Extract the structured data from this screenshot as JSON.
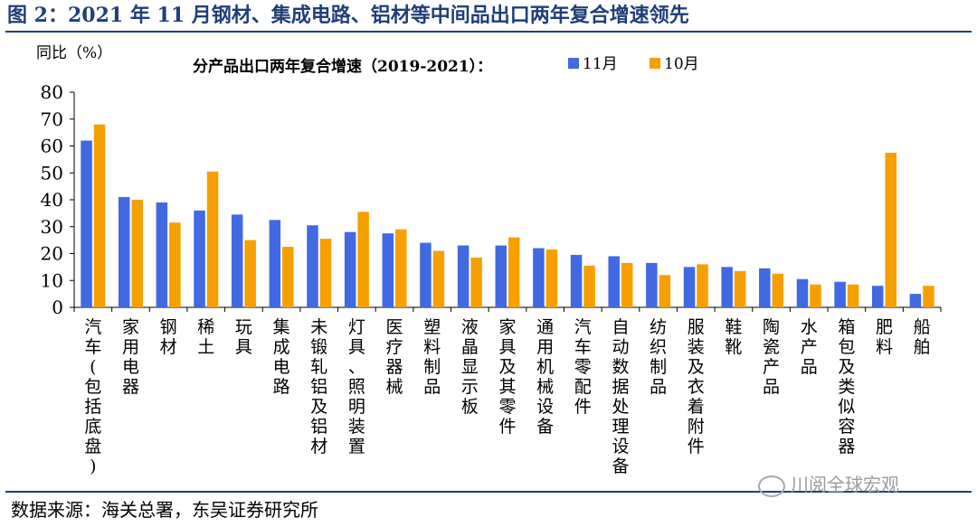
{
  "figure": {
    "title": "图 2：2021 年 11 月钢材、集成电路、铝材等中间品出口两年复合增速领先",
    "source": "数据来源：海关总署，东吴证券研究所",
    "watermark": "川阅全球宏观"
  },
  "colors": {
    "series_11": "#4169e1",
    "series_10": "#f5a000",
    "frame": "#1f3f7a"
  },
  "chart_data": {
    "type": "bar",
    "title": "分产品出口两年复合增速（2019-2021）：",
    "ylabel": "同比（%）",
    "ylim": [
      0,
      80
    ],
    "yticks": [
      0,
      10,
      20,
      30,
      40,
      50,
      60,
      70,
      80
    ],
    "grid": false,
    "legend_position": "top-right",
    "categories": [
      "汽车(包括底盘)",
      "家用电器",
      "钢材",
      "稀土",
      "玩具",
      "集成电路",
      "未锻轧铝及铝材",
      "灯具、照明装置",
      "医疗器械",
      "塑料制品",
      "液晶显示板",
      "家具及其零件",
      "通用机械设备",
      "汽车零配件",
      "自动数据处理设备",
      "纺织制品",
      "服装及衣着附件",
      "鞋靴",
      "陶瓷产品",
      "水产品",
      "箱包及类似容器",
      "肥料",
      "船舶"
    ],
    "series": [
      {
        "name": "11月",
        "values": [
          62,
          41,
          39,
          36,
          34.5,
          32.5,
          30.5,
          28,
          27.5,
          24,
          23,
          23,
          22,
          19.5,
          19,
          16.5,
          15,
          15,
          14.5,
          10.5,
          9.5,
          8,
          5
        ]
      },
      {
        "name": "10月",
        "values": [
          68,
          40,
          31.5,
          50.5,
          25,
          22.5,
          25.5,
          35.5,
          29,
          21,
          18.5,
          26,
          21.5,
          15.5,
          16.5,
          12,
          16,
          13.5,
          12.5,
          8.5,
          8.5,
          57.5,
          8
        ]
      }
    ]
  }
}
